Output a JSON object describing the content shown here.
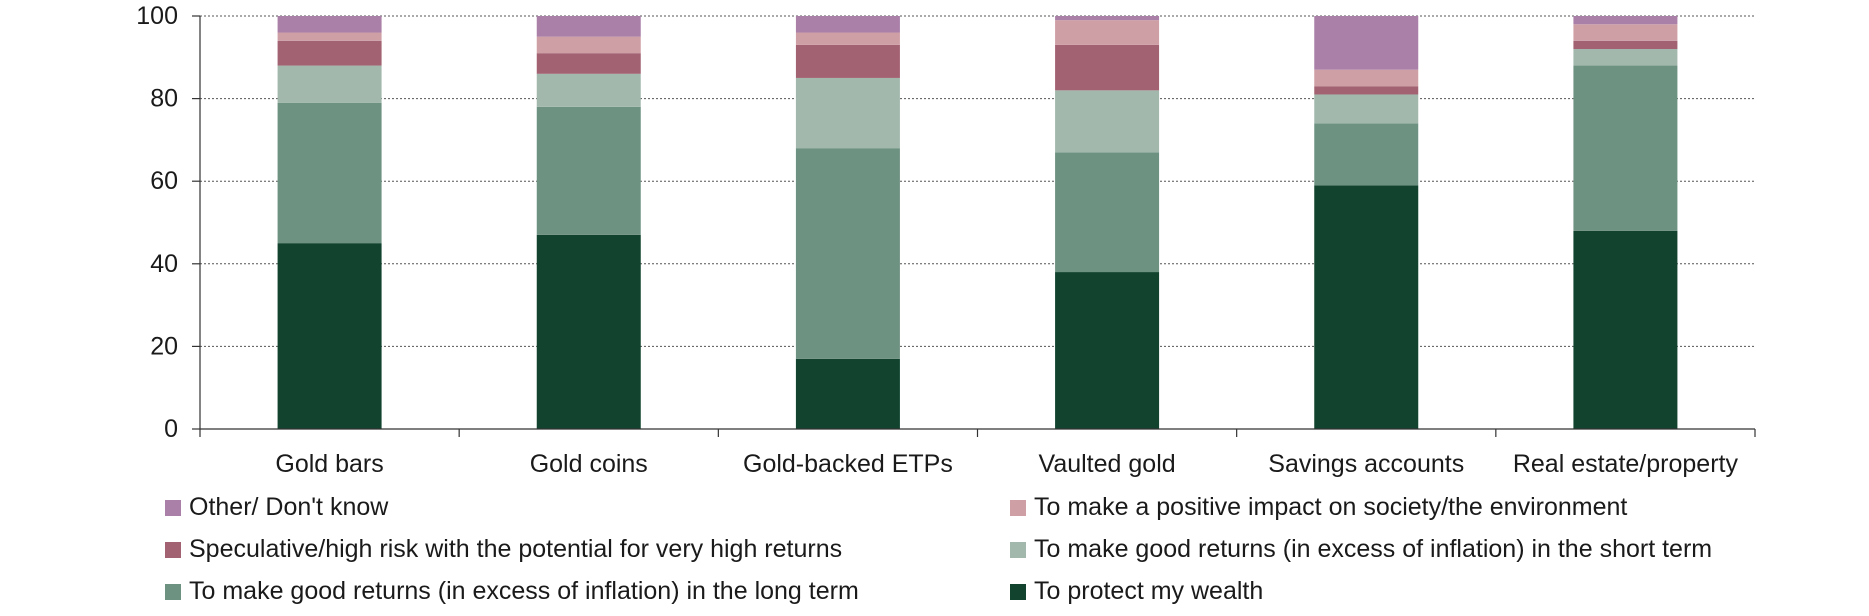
{
  "chart_data": {
    "type": "bar",
    "stacked": true,
    "categories": [
      "Gold bars",
      "Gold coins",
      "Gold-backed ETPs",
      "Vaulted gold",
      "Savings accounts",
      "Real estate/property"
    ],
    "ylim": [
      0,
      100
    ],
    "yticks": [
      0,
      20,
      40,
      60,
      80,
      100
    ],
    "grid": true,
    "legend_position": "bottom",
    "series": [
      {
        "name": "To protect my wealth",
        "color": "#11432f",
        "values": [
          45,
          47,
          17,
          38,
          59,
          48
        ]
      },
      {
        "name": "To make good returns (in excess of inflation) in the long term",
        "color": "#6e9282",
        "values": [
          34,
          31,
          51,
          29,
          15,
          40
        ]
      },
      {
        "name": "To make good returns (in excess of inflation) in the short term",
        "color": "#a2b8ad",
        "values": [
          9,
          8,
          17,
          15,
          7,
          4
        ]
      },
      {
        "name": "Speculative/high risk with the potential for very high returns",
        "color": "#a26272",
        "values": [
          6,
          5,
          8,
          11,
          2,
          2
        ]
      },
      {
        "name": "To make a positive impact on society/the environment",
        "color": "#cf9fa6",
        "values": [
          2,
          4,
          3,
          6,
          4,
          4
        ]
      },
      {
        "name": "Other/ Don't know",
        "color": "#aa80a8",
        "values": [
          4,
          5,
          4,
          1,
          13,
          2
        ]
      }
    ]
  },
  "legend_order": [
    5,
    4,
    3,
    2,
    1,
    0
  ]
}
